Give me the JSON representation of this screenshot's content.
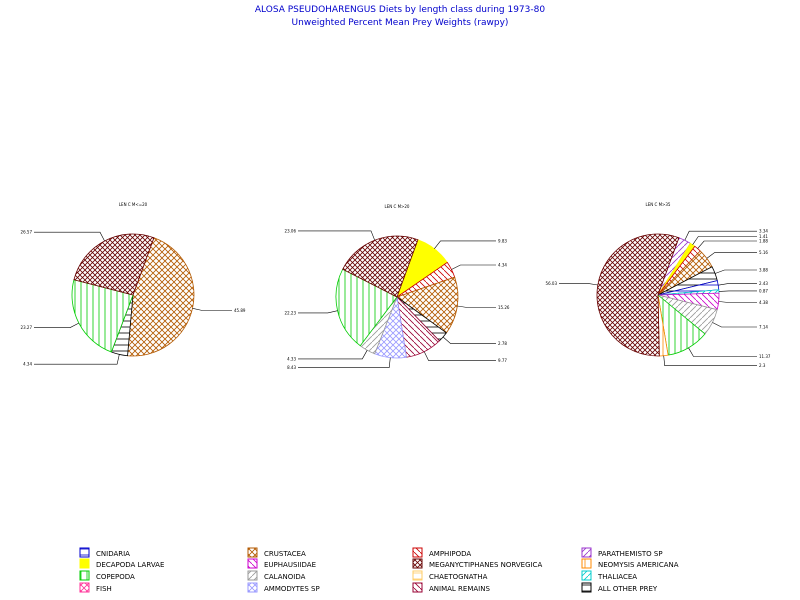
{
  "title": "ALOSA PSEUDOHARENGUS Diets by length class during 1973-80",
  "subtitle": "Unweighted Percent Mean Prey Weights (rawpy)",
  "colors": {
    "CNIDARIA": "#0000cc",
    "CRUSTACEA": "#b35900",
    "AMPHIPODA": "#cc0000",
    "PARATHEMISTO SP": "#9933cc",
    "DECAPODA LARVAE": "#ffff00",
    "EUPHAUSIIDAE": "#cc00cc",
    "MEGANYCTIPHANES NORVEGICA": "#660000",
    "NEOMYSIS AMERICANA": "#ff8800",
    "COPEPODA": "#00cc00",
    "CALANOIDA": "#999999",
    "CHAETOGNATHA": "#ffcc66",
    "THALIACEA": "#00cccc",
    "FISH": "#ff3399",
    "AMMODYTES SP": "#9999ff",
    "ANIMAL REMAINS": "#990033",
    "ALL OTHER PREY": "#000000"
  },
  "chart_data": [
    {
      "type": "pie",
      "title": "LEN C M<=20",
      "slices": [
        {
          "category": "CRUSTACEA",
          "value": 45.89,
          "label": "45.89"
        },
        {
          "category": "ALL OTHER PREY",
          "value": 4.34,
          "label": "4.34"
        },
        {
          "category": "COPEPODA",
          "value": 23.27,
          "label": "23.27"
        },
        {
          "category": "MEGANYCTIPHANES NORVEGICA",
          "value": 26.57,
          "label": "26.57"
        }
      ]
    },
    {
      "type": "pie",
      "title": "LEN C M>20",
      "slices": [
        {
          "category": "DECAPODA LARVAE",
          "value": 9.83,
          "label": "9.83"
        },
        {
          "category": "AMPHIPODA",
          "value": 4.34,
          "label": "4.34"
        },
        {
          "category": "CRUSTACEA",
          "value": 15.26,
          "label": "15.26"
        },
        {
          "category": "ALL OTHER PREY",
          "value": 2.78,
          "label": "2.78"
        },
        {
          "category": "ANIMAL REMAINS",
          "value": 9.77,
          "label": "9.77"
        },
        {
          "category": "AMMODYTES SP",
          "value": 8.43,
          "label": "8.43"
        },
        {
          "category": "CALANOIDA",
          "value": 4.33,
          "label": "4.33"
        },
        {
          "category": "COPEPODA",
          "value": 22.23,
          "label": "22.23"
        },
        {
          "category": "MEGANYCTIPHANES NORVEGICA",
          "value": 23.06,
          "label": "23.06"
        }
      ]
    },
    {
      "type": "pie",
      "title": "LEN C M>35",
      "slices": [
        {
          "category": "PARATHEMISTO SP",
          "value": 3.34,
          "label": "3.34"
        },
        {
          "category": "DECAPODA LARVAE",
          "value": 1.41,
          "label": "1.41"
        },
        {
          "category": "AMPHIPODA",
          "value": 1.88,
          "label": "1.88"
        },
        {
          "category": "CRUSTACEA",
          "value": 5.16,
          "label": "5.16"
        },
        {
          "category": "ALL OTHER PREY",
          "value": 3.88,
          "label": "3.88"
        },
        {
          "category": "CNIDARIA",
          "value": 2.43,
          "label": "2.43"
        },
        {
          "category": "THALIACEA",
          "value": 0.87,
          "label": "0.87"
        },
        {
          "category": "EUPHAUSIIDAE",
          "value": 4.38,
          "label": "4.38"
        },
        {
          "category": "CALANOIDA",
          "value": 7.14,
          "label": "7.14"
        },
        {
          "category": "COPEPODA",
          "value": 11.37,
          "label": "11.37"
        },
        {
          "category": "NEOMYSIS AMERICANA",
          "value": 2.3,
          "label": "2.3"
        },
        {
          "category": "MEGANYCTIPHANES NORVEGICA",
          "value": 56.03,
          "label": "56.03"
        }
      ]
    }
  ],
  "legend": [
    {
      "category": "CNIDARIA",
      "label": "CNIDARIA"
    },
    {
      "category": "DECAPODA LARVAE",
      "label": "DECAPODA LARVAE"
    },
    {
      "category": "COPEPODA",
      "label": "COPEPODA"
    },
    {
      "category": "FISH",
      "label": "FISH"
    },
    {
      "category": "CRUSTACEA",
      "label": "CRUSTACEA"
    },
    {
      "category": "EUPHAUSIIDAE",
      "label": "EUPHAUSIIDAE"
    },
    {
      "category": "CALANOIDA",
      "label": "CALANOIDA"
    },
    {
      "category": "AMMODYTES SP",
      "label": "AMMODYTES SP"
    },
    {
      "category": "AMPHIPODA",
      "label": "AMPHIPODA"
    },
    {
      "category": "MEGANYCTIPHANES NORVEGICA",
      "label": "MEGANYCTIPHANES NORVEGICA"
    },
    {
      "category": "CHAETOGNATHA",
      "label": "CHAETOGNATHA"
    },
    {
      "category": "ANIMAL REMAINS",
      "label": "ANIMAL REMAINS"
    },
    {
      "category": "PARATHEMISTO SP",
      "label": "PARATHEMISTO SP"
    },
    {
      "category": "NEOMYSIS AMERICANA",
      "label": "NEOMYSIS AMERICANA"
    },
    {
      "category": "THALIACEA",
      "label": "THALIACEA"
    },
    {
      "category": "ALL OTHER PREY",
      "label": "ALL OTHER PREY"
    }
  ]
}
